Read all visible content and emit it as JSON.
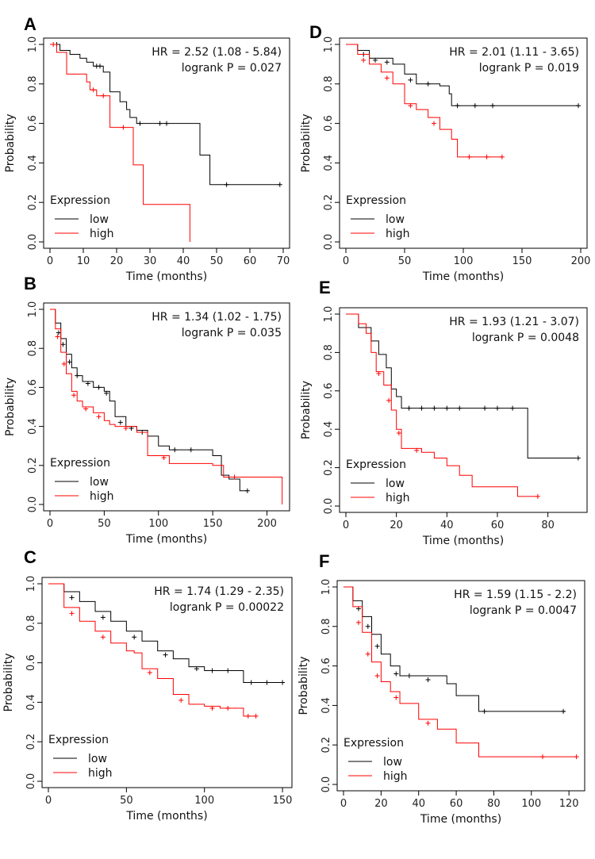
{
  "figure": {
    "legend_title": "Expression",
    "legend_low": "low",
    "legend_high": "high",
    "colors": {
      "low": "#000000",
      "high": "#ff0000"
    }
  },
  "chart_data": [
    {
      "panel": "A",
      "type": "line",
      "title": "",
      "xlabel": "Time (months)",
      "ylabel": "Probability",
      "xlim": [
        0,
        70
      ],
      "ylim": [
        0,
        1.0
      ],
      "xticks": [
        0,
        10,
        20,
        30,
        40,
        50,
        60,
        70
      ],
      "yticks": [
        0.0,
        0.2,
        0.4,
        0.6,
        0.8,
        1.0
      ],
      "hr_text": "HR = 2.52 (1.08 - 5.84)",
      "p_text": "logrank P = 0.027",
      "series": [
        {
          "name": "low",
          "x": [
            0,
            3,
            6,
            9,
            11,
            13,
            16,
            18,
            21,
            23,
            24,
            26,
            45,
            48,
            69
          ],
          "y": [
            1.0,
            0.97,
            0.95,
            0.93,
            0.91,
            0.89,
            0.86,
            0.76,
            0.71,
            0.67,
            0.63,
            0.6,
            0.44,
            0.29,
            0.29
          ],
          "censor": [
            [
              2,
              1.0
            ],
            [
              14,
              0.89
            ],
            [
              15,
              0.89
            ],
            [
              27,
              0.6
            ],
            [
              33,
              0.6
            ],
            [
              35,
              0.6
            ],
            [
              53,
              0.29
            ],
            [
              69,
              0.29
            ]
          ]
        },
        {
          "name": "high",
          "x": [
            0,
            2,
            5,
            11,
            12,
            14,
            18,
            25,
            28,
            42
          ],
          "y": [
            1.0,
            0.96,
            0.85,
            0.81,
            0.77,
            0.74,
            0.58,
            0.39,
            0.19,
            0.0
          ],
          "censor": [
            [
              1,
              1.0
            ],
            [
              13,
              0.77
            ],
            [
              16,
              0.74
            ],
            [
              22,
              0.58
            ]
          ]
        }
      ]
    },
    {
      "panel": "B",
      "type": "line",
      "title": "",
      "xlabel": "Time (months)",
      "ylabel": "Probability",
      "xlim": [
        0,
        215
      ],
      "ylim": [
        0,
        1.0
      ],
      "xticks": [
        0,
        50,
        100,
        150,
        200
      ],
      "yticks": [
        0.0,
        0.2,
        0.4,
        0.6,
        0.8,
        1.0
      ],
      "hr_text": "HR = 1.34 (1.02 - 1.75)",
      "p_text": "logrank P = 0.035",
      "series": [
        {
          "name": "low",
          "x": [
            0,
            5,
            10,
            15,
            20,
            25,
            30,
            40,
            50,
            55,
            60,
            70,
            80,
            90,
            100,
            110,
            120,
            140,
            150,
            158,
            165,
            175,
            182
          ],
          "y": [
            1.0,
            0.93,
            0.85,
            0.77,
            0.7,
            0.66,
            0.63,
            0.6,
            0.58,
            0.53,
            0.45,
            0.4,
            0.38,
            0.35,
            0.3,
            0.28,
            0.28,
            0.28,
            0.25,
            0.15,
            0.13,
            0.07,
            0.07
          ],
          "censor": [
            [
              8,
              0.88
            ],
            [
              12,
              0.82
            ],
            [
              18,
              0.73
            ],
            [
              25,
              0.66
            ],
            [
              35,
              0.62
            ],
            [
              45,
              0.6
            ],
            [
              52,
              0.57
            ],
            [
              65,
              0.42
            ],
            [
              75,
              0.39
            ],
            [
              85,
              0.37
            ],
            [
              115,
              0.28
            ],
            [
              130,
              0.28
            ],
            [
              182,
              0.07
            ]
          ]
        },
        {
          "name": "high",
          "x": [
            0,
            5,
            10,
            15,
            20,
            25,
            30,
            40,
            50,
            55,
            60,
            80,
            90,
            100,
            110,
            120,
            150,
            160,
            165,
            213,
            214
          ],
          "y": [
            1.0,
            0.9,
            0.78,
            0.67,
            0.58,
            0.53,
            0.5,
            0.47,
            0.43,
            0.41,
            0.4,
            0.37,
            0.25,
            0.25,
            0.21,
            0.21,
            0.2,
            0.14,
            0.14,
            0.14,
            0.0
          ],
          "censor": [
            [
              7,
              0.86
            ],
            [
              13,
              0.72
            ],
            [
              22,
              0.56
            ],
            [
              33,
              0.49
            ],
            [
              45,
              0.45
            ],
            [
              70,
              0.39
            ],
            [
              105,
              0.24
            ],
            [
              170,
              0.14
            ]
          ]
        }
      ]
    },
    {
      "panel": "C",
      "type": "line",
      "title": "",
      "xlabel": "Time (months)",
      "ylabel": "Probability",
      "xlim": [
        0,
        152
      ],
      "ylim": [
        0,
        1.0
      ],
      "xticks": [
        0,
        50,
        100,
        150
      ],
      "yticks": [
        0.0,
        0.2,
        0.4,
        0.6,
        0.8,
        1.0
      ],
      "hr_text": "HR = 1.74 (1.29 - 2.35)",
      "p_text": "logrank P = 0.00022",
      "series": [
        {
          "name": "low",
          "x": [
            0,
            10,
            20,
            30,
            40,
            50,
            60,
            70,
            80,
            90,
            100,
            110,
            120,
            125,
            150
          ],
          "y": [
            1.0,
            0.96,
            0.91,
            0.86,
            0.81,
            0.76,
            0.71,
            0.66,
            0.62,
            0.58,
            0.56,
            0.56,
            0.56,
            0.5,
            0.5
          ],
          "censor": [
            [
              15,
              0.93
            ],
            [
              35,
              0.83
            ],
            [
              55,
              0.73
            ],
            [
              75,
              0.64
            ],
            [
              95,
              0.57
            ],
            [
              105,
              0.56
            ],
            [
              115,
              0.56
            ],
            [
              130,
              0.5
            ],
            [
              140,
              0.5
            ],
            [
              150,
              0.5
            ]
          ]
        },
        {
          "name": "high",
          "x": [
            0,
            10,
            20,
            30,
            40,
            50,
            55,
            60,
            70,
            80,
            90,
            100,
            110,
            120,
            125,
            133
          ],
          "y": [
            1.0,
            0.88,
            0.81,
            0.76,
            0.7,
            0.66,
            0.65,
            0.57,
            0.52,
            0.44,
            0.39,
            0.38,
            0.37,
            0.37,
            0.33,
            0.33
          ],
          "censor": [
            [
              15,
              0.85
            ],
            [
              35,
              0.73
            ],
            [
              65,
              0.55
            ],
            [
              85,
              0.41
            ],
            [
              105,
              0.37
            ],
            [
              115,
              0.37
            ],
            [
              128,
              0.33
            ],
            [
              133,
              0.33
            ]
          ]
        }
      ]
    },
    {
      "panel": "D",
      "type": "line",
      "title": "",
      "xlabel": "Time (months)",
      "ylabel": "Probability",
      "xlim": [
        0,
        200
      ],
      "ylim": [
        0,
        1.0
      ],
      "xticks": [
        0,
        50,
        100,
        150,
        200
      ],
      "yticks": [
        0.0,
        0.2,
        0.4,
        0.6,
        0.8,
        1.0
      ],
      "hr_text": "HR = 2.01 (1.11 - 3.65)",
      "p_text": "logrank P = 0.019",
      "series": [
        {
          "name": "low",
          "x": [
            0,
            10,
            20,
            40,
            50,
            60,
            80,
            88,
            90,
            198
          ],
          "y": [
            1.0,
            0.97,
            0.93,
            0.9,
            0.85,
            0.8,
            0.79,
            0.75,
            0.69,
            0.69
          ],
          "censor": [
            [
              15,
              0.95
            ],
            [
              25,
              0.92
            ],
            [
              35,
              0.91
            ],
            [
              55,
              0.82
            ],
            [
              70,
              0.8
            ],
            [
              95,
              0.69
            ],
            [
              110,
              0.69
            ],
            [
              125,
              0.69
            ],
            [
              198,
              0.69
            ]
          ]
        },
        {
          "name": "high",
          "x": [
            0,
            10,
            20,
            30,
            40,
            50,
            60,
            70,
            80,
            90,
            95,
            100,
            133
          ],
          "y": [
            1.0,
            0.95,
            0.9,
            0.86,
            0.8,
            0.7,
            0.67,
            0.63,
            0.57,
            0.52,
            0.43,
            0.43,
            0.43
          ],
          "censor": [
            [
              15,
              0.92
            ],
            [
              35,
              0.83
            ],
            [
              55,
              0.69
            ],
            [
              75,
              0.6
            ],
            [
              105,
              0.43
            ],
            [
              120,
              0.43
            ],
            [
              133,
              0.43
            ]
          ]
        }
      ]
    },
    {
      "panel": "E",
      "type": "line",
      "title": "",
      "xlabel": "Time (months)",
      "ylabel": "Probability",
      "xlim": [
        0,
        93
      ],
      "ylim": [
        0,
        1.0
      ],
      "xticks": [
        0,
        20,
        40,
        60,
        80
      ],
      "yticks": [
        0.0,
        0.2,
        0.4,
        0.6,
        0.8,
        1.0
      ],
      "hr_text": "HR = 1.93 (1.21 - 3.07)",
      "p_text": "logrank P = 0.0048",
      "series": [
        {
          "name": "low",
          "x": [
            0,
            5,
            10,
            13,
            16,
            18,
            20,
            22,
            72,
            92
          ],
          "y": [
            1.0,
            0.93,
            0.86,
            0.79,
            0.72,
            0.61,
            0.57,
            0.51,
            0.25,
            0.25
          ],
          "censor": [
            [
              25,
              0.51
            ],
            [
              30,
              0.51
            ],
            [
              35,
              0.51
            ],
            [
              40,
              0.51
            ],
            [
              45,
              0.51
            ],
            [
              55,
              0.51
            ],
            [
              60,
              0.51
            ],
            [
              66,
              0.51
            ],
            [
              92,
              0.25
            ]
          ]
        },
        {
          "name": "high",
          "x": [
            0,
            5,
            8,
            10,
            12,
            15,
            18,
            20,
            22,
            25,
            30,
            35,
            40,
            45,
            50,
            68,
            76
          ],
          "y": [
            1.0,
            0.95,
            0.9,
            0.8,
            0.7,
            0.63,
            0.5,
            0.4,
            0.3,
            0.3,
            0.28,
            0.25,
            0.21,
            0.16,
            0.1,
            0.05,
            0.05
          ],
          "censor": [
            [
              13,
              0.69
            ],
            [
              17,
              0.55
            ],
            [
              21,
              0.38
            ],
            [
              28,
              0.29
            ],
            [
              76,
              0.05
            ]
          ]
        }
      ]
    },
    {
      "panel": "F",
      "type": "line",
      "title": "",
      "xlabel": "Time (months)",
      "ylabel": "Probability",
      "xlim": [
        0,
        125
      ],
      "ylim": [
        0,
        1.0
      ],
      "xticks": [
        0,
        20,
        40,
        60,
        80,
        100,
        120
      ],
      "yticks": [
        0.0,
        0.2,
        0.4,
        0.6,
        0.8,
        1.0
      ],
      "hr_text": "HR = 1.59 (1.15 - 2.2)",
      "p_text": "logrank P = 0.0047",
      "series": [
        {
          "name": "low",
          "x": [
            0,
            5,
            10,
            15,
            20,
            25,
            30,
            40,
            55,
            60,
            70,
            72,
            118
          ],
          "y": [
            1.0,
            0.93,
            0.85,
            0.76,
            0.66,
            0.6,
            0.55,
            0.55,
            0.51,
            0.45,
            0.45,
            0.37,
            0.37
          ],
          "censor": [
            [
              8,
              0.89
            ],
            [
              13,
              0.8
            ],
            [
              18,
              0.7
            ],
            [
              28,
              0.56
            ],
            [
              35,
              0.55
            ],
            [
              45,
              0.53
            ],
            [
              75,
              0.37
            ],
            [
              117,
              0.37
            ]
          ]
        },
        {
          "name": "high",
          "x": [
            0,
            5,
            10,
            15,
            20,
            25,
            30,
            40,
            50,
            60,
            70,
            72,
            124
          ],
          "y": [
            1.0,
            0.9,
            0.77,
            0.62,
            0.52,
            0.47,
            0.41,
            0.33,
            0.28,
            0.21,
            0.21,
            0.14,
            0.14
          ],
          "censor": [
            [
              8,
              0.82
            ],
            [
              13,
              0.66
            ],
            [
              18,
              0.55
            ],
            [
              28,
              0.44
            ],
            [
              45,
              0.31
            ],
            [
              106,
              0.14
            ],
            [
              124,
              0.14
            ]
          ]
        }
      ]
    }
  ]
}
